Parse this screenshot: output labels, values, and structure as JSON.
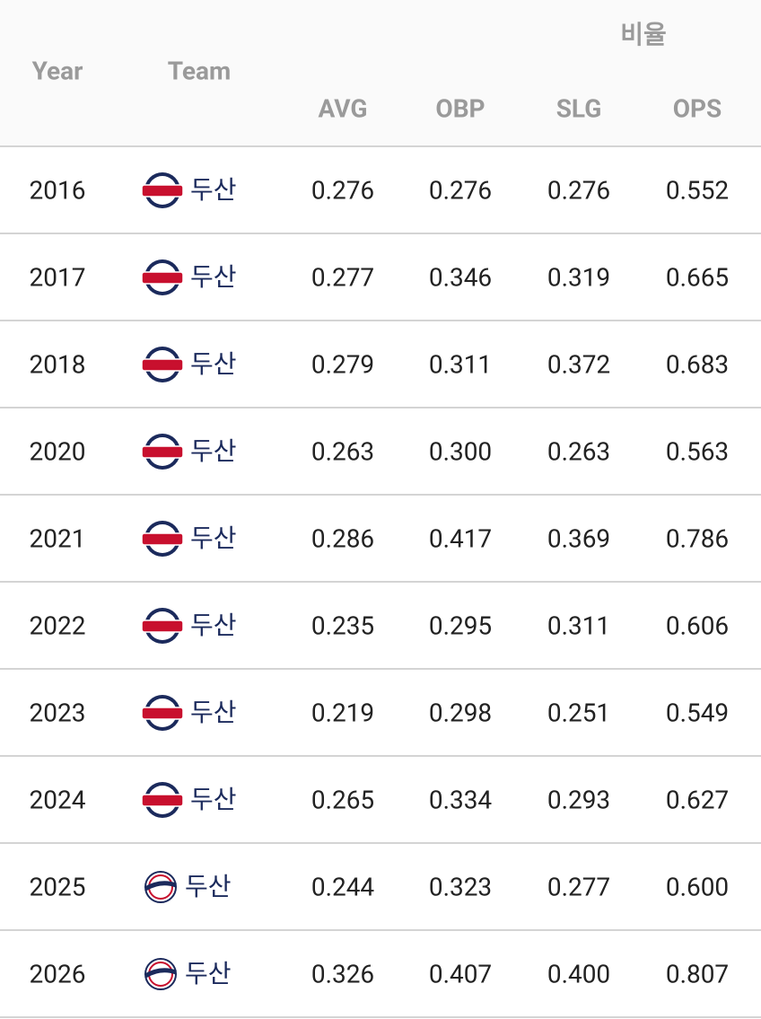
{
  "table": {
    "header": {
      "year": "Year",
      "team": "Team",
      "group": "비율",
      "columns": [
        "AVG",
        "OBP",
        "SLG",
        "OPS"
      ]
    },
    "rows": [
      [
        "2016",
        "두산",
        "0.276",
        "0.276",
        "0.276",
        "0.552"
      ],
      [
        "2017",
        "두산",
        "0.277",
        "0.346",
        "0.319",
        "0.665"
      ],
      [
        "2018",
        "두산",
        "0.279",
        "0.311",
        "0.372",
        "0.683"
      ],
      [
        "2020",
        "두산",
        "0.263",
        "0.300",
        "0.263",
        "0.563"
      ],
      [
        "2021",
        "두산",
        "0.286",
        "0.417",
        "0.369",
        "0.786"
      ],
      [
        "2022",
        "두산",
        "0.235",
        "0.295",
        "0.311",
        "0.606"
      ],
      [
        "2023",
        "두산",
        "0.219",
        "0.298",
        "0.251",
        "0.549"
      ],
      [
        "2024",
        "두산",
        "0.265",
        "0.334",
        "0.293",
        "0.627"
      ],
      [
        "2025",
        "두산",
        "0.244",
        "0.323",
        "0.277",
        "0.600"
      ],
      [
        "2026",
        "두산",
        "0.326",
        "0.407",
        "0.400",
        "0.807"
      ]
    ]
  }
}
